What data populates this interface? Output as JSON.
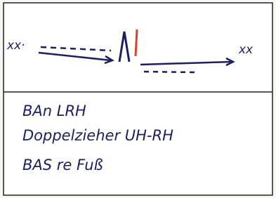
{
  "diagram": {
    "left_label": "xx·",
    "right_label": "xx"
  },
  "notes": [
    "BAn LRH",
    "Doppelzieher UH-RH",
    "BAS re Fuß"
  ]
}
